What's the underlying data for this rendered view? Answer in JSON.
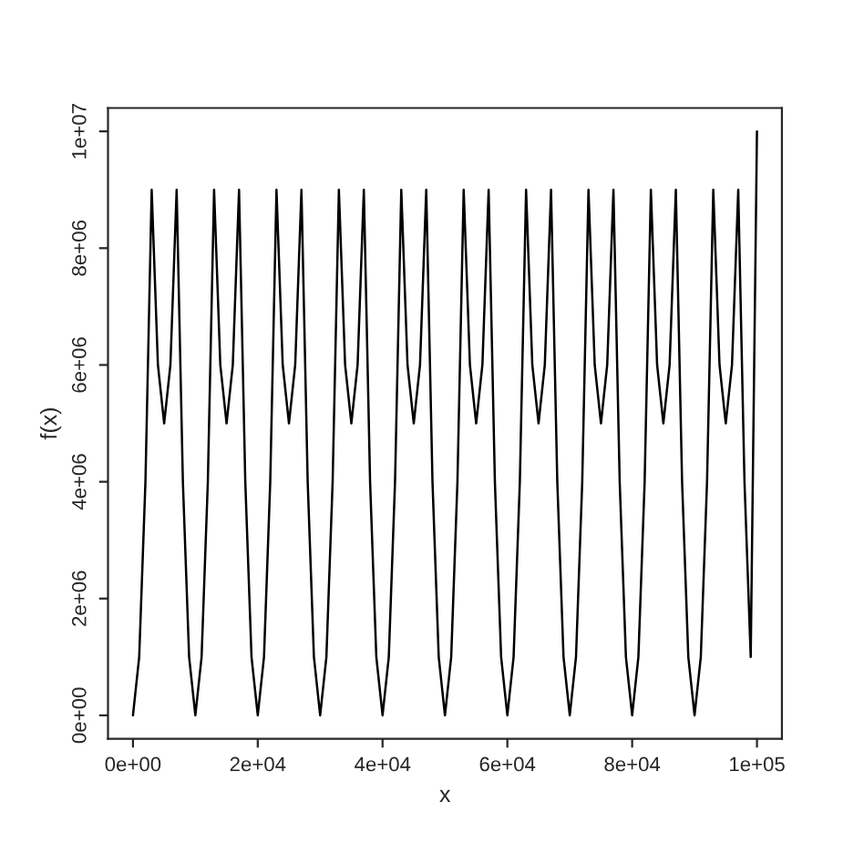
{
  "chart_data": {
    "type": "line",
    "xlabel": "x",
    "ylabel": "f(x)",
    "x": [
      0,
      1000,
      2000,
      3000,
      4000,
      5000,
      6000,
      7000,
      8000,
      9000,
      10000,
      11000,
      12000,
      13000,
      14000,
      15000,
      16000,
      17000,
      18000,
      19000,
      20000,
      21000,
      22000,
      23000,
      24000,
      25000,
      26000,
      27000,
      28000,
      29000,
      30000,
      31000,
      32000,
      33000,
      34000,
      35000,
      36000,
      37000,
      38000,
      39000,
      40000,
      41000,
      42000,
      43000,
      44000,
      45000,
      46000,
      47000,
      48000,
      49000,
      50000,
      51000,
      52000,
      53000,
      54000,
      55000,
      56000,
      57000,
      58000,
      59000,
      60000,
      61000,
      62000,
      63000,
      64000,
      65000,
      66000,
      67000,
      68000,
      69000,
      70000,
      71000,
      72000,
      73000,
      74000,
      75000,
      76000,
      77000,
      78000,
      79000,
      80000,
      81000,
      82000,
      83000,
      84000,
      85000,
      86000,
      87000,
      88000,
      89000,
      90000,
      91000,
      92000,
      93000,
      94000,
      95000,
      96000,
      97000,
      98000,
      99000,
      100000
    ],
    "series": [
      {
        "color": "#000000",
        "values": [
          0,
          1000000,
          4000000,
          9000000,
          6000000,
          5000000,
          6000000,
          9000000,
          4000000,
          1000000,
          0,
          1000000,
          4000000,
          9000000,
          6000000,
          5000000,
          6000000,
          9000000,
          4000000,
          1000000,
          0,
          1000000,
          4000000,
          9000000,
          6000000,
          5000000,
          6000000,
          9000000,
          4000000,
          1000000,
          0,
          1000000,
          4000000,
          9000000,
          6000000,
          5000000,
          6000000,
          9000000,
          4000000,
          1000000,
          0,
          1000000,
          4000000,
          9000000,
          6000000,
          5000000,
          6000000,
          9000000,
          4000000,
          1000000,
          0,
          1000000,
          4000000,
          9000000,
          6000000,
          5000000,
          6000000,
          9000000,
          4000000,
          1000000,
          0,
          1000000,
          4000000,
          9000000,
          6000000,
          5000000,
          6000000,
          9000000,
          4000000,
          1000000,
          0,
          1000000,
          4000000,
          9000000,
          6000000,
          5000000,
          6000000,
          9000000,
          4000000,
          1000000,
          0,
          1000000,
          4000000,
          9000000,
          6000000,
          5000000,
          6000000,
          9000000,
          4000000,
          1000000,
          0,
          1000000,
          4000000,
          9000000,
          6000000,
          5000000,
          6000000,
          9000000,
          4000000,
          1000000,
          10000000
        ]
      }
    ],
    "xlim": [
      -4000,
      104000
    ],
    "ylim": [
      -400000,
      10400000
    ],
    "xticks": [
      {
        "value": 0,
        "label": "0e+00"
      },
      {
        "value": 20000,
        "label": "2e+04"
      },
      {
        "value": 40000,
        "label": "4e+04"
      },
      {
        "value": 60000,
        "label": "6e+04"
      },
      {
        "value": 80000,
        "label": "8e+04"
      },
      {
        "value": 100000,
        "label": "1e+05"
      }
    ],
    "yticks": [
      {
        "value": 0,
        "label": "0e+00"
      },
      {
        "value": 2000000,
        "label": "2e+06"
      },
      {
        "value": 4000000,
        "label": "4e+06"
      },
      {
        "value": 6000000,
        "label": "6e+06"
      },
      {
        "value": 8000000,
        "label": "8e+06"
      },
      {
        "value": 10000000,
        "label": "1e+07"
      }
    ],
    "grid": false,
    "marker": "none",
    "line_style": "solid"
  }
}
